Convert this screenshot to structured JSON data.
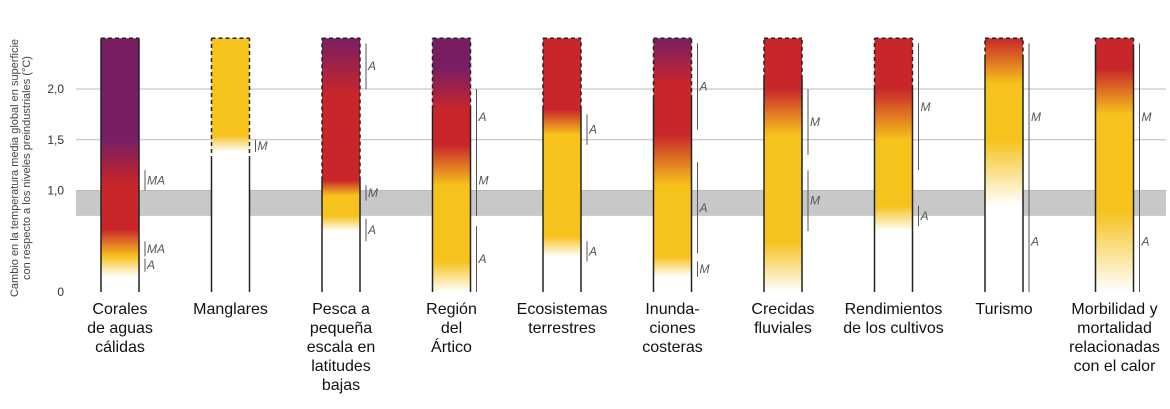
{
  "chart_data": {
    "type": "bar",
    "ylabel_lines": [
      "Cambio en la temperatura media global en superficie",
      "con respecto a los niveles preindustriales (°C)"
    ],
    "y_ticks": [
      "0",
      "1,0",
      "1,5",
      "2,0"
    ],
    "y_tick_values": [
      0,
      1.0,
      1.5,
      2.0
    ],
    "ylim": [
      0,
      2.5
    ],
    "observed_band": [
      0.75,
      1.0
    ],
    "colors": {
      "undetectable": "#ffffff",
      "moderate": "#f6c21c",
      "high": "#c8262a",
      "very_high": "#7a1e63",
      "band": "#c8c8c8",
      "gridline": "#bbbbbb"
    },
    "categories": [
      {
        "label_lines": [
          "Corales",
          "de aguas",
          "cálidas"
        ],
        "stops": [
          [
            0.15,
            "#ffffff"
          ],
          [
            0.35,
            "#f6c21c"
          ],
          [
            0.62,
            "#c8262a"
          ],
          [
            1.05,
            "#c8262a"
          ],
          [
            1.5,
            "#7a1e63"
          ],
          [
            2.5,
            "#7a1e63"
          ]
        ],
        "dashed_from": null,
        "confidence": [
          {
            "from": 1.0,
            "to": 1.2,
            "label": "MA"
          },
          {
            "from": 0.35,
            "to": 0.5,
            "label": "MA"
          },
          {
            "from": 0.2,
            "to": 0.33,
            "label": "A"
          }
        ]
      },
      {
        "label_lines": [
          "Manglares"
        ],
        "stops": [
          [
            1.38,
            "#ffffff"
          ],
          [
            1.55,
            "#f6c21c"
          ],
          [
            2.5,
            "#f6c21c"
          ]
        ],
        "dashed_from": 1.3,
        "confidence": [
          {
            "from": 1.38,
            "to": 1.5,
            "label": "M"
          }
        ]
      },
      {
        "label_lines": [
          "Pesca a",
          "pequeña",
          "escala en",
          "latitudes",
          "bajas"
        ],
        "stops": [
          [
            0.6,
            "#ffffff"
          ],
          [
            0.75,
            "#f6c21c"
          ],
          [
            0.95,
            "#f6c21c"
          ],
          [
            1.1,
            "#c8262a"
          ],
          [
            1.95,
            "#c8262a"
          ],
          [
            2.5,
            "#7a1e63"
          ]
        ],
        "dashed_from": 1.1,
        "confidence": [
          {
            "from": 2.0,
            "to": 2.45,
            "label": "A"
          },
          {
            "from": 0.9,
            "to": 1.05,
            "label": "M"
          },
          {
            "from": 0.5,
            "to": 0.72,
            "label": "A"
          }
        ]
      },
      {
        "label_lines": [
          "Región",
          "del",
          "Ártico"
        ],
        "stops": [
          [
            0.0,
            "#ffffff"
          ],
          [
            0.3,
            "#f6c21c"
          ],
          [
            1.05,
            "#f6c21c"
          ],
          [
            1.45,
            "#c8262a"
          ],
          [
            1.8,
            "#c8262a"
          ],
          [
            2.2,
            "#7a1e63"
          ],
          [
            2.5,
            "#7a1e63"
          ]
        ],
        "dashed_from": 1.8,
        "confidence": [
          {
            "from": 1.45,
            "to": 2.0,
            "label": "A"
          },
          {
            "from": 0.75,
            "to": 1.45,
            "label": "M"
          },
          {
            "from": 0.0,
            "to": 0.65,
            "label": "A"
          }
        ]
      },
      {
        "label_lines": [
          "Ecosistemas",
          "terrestres"
        ],
        "stops": [
          [
            0.35,
            "#ffffff"
          ],
          [
            0.55,
            "#f6c21c"
          ],
          [
            1.55,
            "#f6c21c"
          ],
          [
            1.8,
            "#c8262a"
          ],
          [
            2.2,
            "#c8262a"
          ],
          [
            2.5,
            "#c8262a"
          ]
        ],
        "dashed_from": 1.8,
        "confidence": [
          {
            "from": 1.45,
            "to": 1.75,
            "label": "A"
          },
          {
            "from": 0.3,
            "to": 0.5,
            "label": "A"
          }
        ]
      },
      {
        "label_lines": [
          "Inunda-",
          "ciones",
          "costeras"
        ],
        "stops": [
          [
            0.15,
            "#ffffff"
          ],
          [
            0.35,
            "#f6c21c"
          ],
          [
            1.05,
            "#f6c21c"
          ],
          [
            1.55,
            "#c8262a"
          ],
          [
            2.05,
            "#c8262a"
          ],
          [
            2.5,
            "#7a1e63"
          ]
        ],
        "dashed_from": 1.9,
        "confidence": [
          {
            "from": 1.6,
            "to": 2.45,
            "label": "A"
          },
          {
            "from": 0.38,
            "to": 1.28,
            "label": "A"
          },
          {
            "from": 0.15,
            "to": 0.3,
            "label": "M"
          }
        ]
      },
      {
        "label_lines": [
          "Crecidas",
          "fluviales"
        ],
        "stops": [
          [
            0.0,
            "#ffffff"
          ],
          [
            0.5,
            "#f6c21c"
          ],
          [
            1.55,
            "#f6c21c"
          ],
          [
            2.0,
            "#c8262a"
          ],
          [
            2.5,
            "#c8262a"
          ]
        ],
        "dashed_from": 2.1,
        "confidence": [
          {
            "from": 1.35,
            "to": 2.0,
            "label": "M"
          },
          {
            "from": 0.6,
            "to": 1.2,
            "label": "M"
          }
        ]
      },
      {
        "label_lines": [
          "Rendimientos",
          "de los cultivos"
        ],
        "stops": [
          [
            0.6,
            "#ffffff"
          ],
          [
            0.85,
            "#f6c21c"
          ],
          [
            1.5,
            "#f6c21c"
          ],
          [
            2.0,
            "#c8262a"
          ],
          [
            2.5,
            "#c8262a"
          ]
        ],
        "dashed_from": 2.0,
        "confidence": [
          {
            "from": 1.2,
            "to": 2.45,
            "label": "M"
          },
          {
            "from": 0.65,
            "to": 0.85,
            "label": "A"
          }
        ]
      },
      {
        "label_lines": [
          "Turismo"
        ],
        "stops": [
          [
            0.85,
            "#ffffff"
          ],
          [
            1.5,
            "#f6c21c"
          ],
          [
            2.05,
            "#f6c21c"
          ],
          [
            2.5,
            "#c8262a"
          ]
        ],
        "dashed_from": 2.3,
        "confidence": [
          {
            "from": 1.0,
            "to": 2.45,
            "label": "M"
          },
          {
            "from": 0.0,
            "to": 1.0,
            "label": "A"
          }
        ]
      },
      {
        "label_lines": [
          "Morbilidad y",
          "mortalidad",
          "relacionadas",
          "con el calor"
        ],
        "stops": [
          [
            0.0,
            "#ffffff"
          ],
          [
            0.8,
            "#f6c21c"
          ],
          [
            1.75,
            "#f6c21c"
          ],
          [
            2.2,
            "#c8262a"
          ],
          [
            2.5,
            "#c8262a"
          ]
        ],
        "dashed_from": 2.4,
        "confidence": [
          {
            "from": 1.0,
            "to": 2.45,
            "label": "M"
          },
          {
            "from": 0.0,
            "to": 1.0,
            "label": "A"
          }
        ]
      }
    ]
  }
}
